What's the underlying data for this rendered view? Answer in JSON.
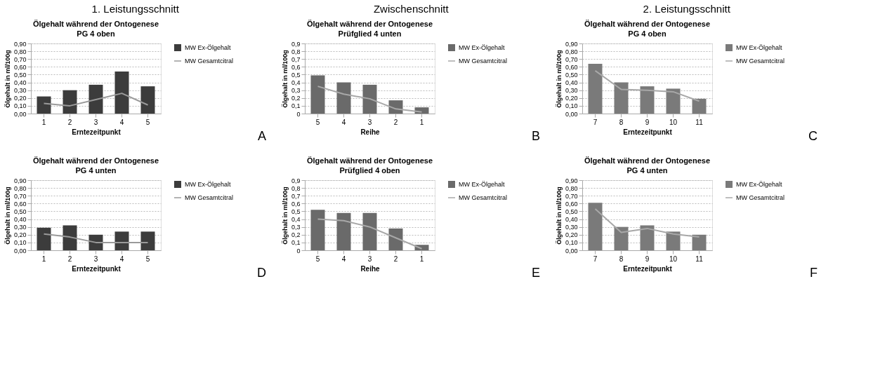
{
  "chart_data": [
    {
      "type": "bar",
      "title": "Ölgehalt während der Ontogenese",
      "subtitle": "PG 4 oben",
      "xlabel": "Erntezeitpunkt",
      "ylabel": "Ölgehalt in ml/100g",
      "categories": [
        "1",
        "2",
        "3",
        "4",
        "5"
      ],
      "series": [
        {
          "name": "MW Ex-Ölgehalt",
          "color": "#3c3c3c",
          "values": [
            0.22,
            0.3,
            0.37,
            0.54,
            0.35
          ]
        },
        {
          "name": "MW Gesamtcitral",
          "type": "line",
          "color": "#9a9a9a",
          "values": [
            0.13,
            0.1,
            0.18,
            0.26,
            0.11
          ]
        }
      ],
      "ylim": [
        0,
        0.9
      ],
      "yticks": [
        {
          "value": 0,
          "label": "0,00"
        },
        {
          "value": 0.1,
          "label": "0,10"
        },
        {
          "value": 0.2,
          "label": "0,20"
        },
        {
          "value": 0.3,
          "label": "0,30"
        },
        {
          "value": 0.4,
          "label": "0,40"
        },
        {
          "value": 0.5,
          "label": "0,50"
        },
        {
          "value": 0.6,
          "label": "0,60"
        },
        {
          "value": 0.7,
          "label": "0,70"
        },
        {
          "value": 0.8,
          "label": "0,80"
        },
        {
          "value": 0.9,
          "label": "0,90"
        }
      ],
      "grid": "y",
      "legend": "right",
      "annotations": [
        "1. Leistungsschnitt",
        "A"
      ]
    },
    {
      "type": "bar",
      "title": "Ölgehalt während der Ontogenese",
      "subtitle": "Prüfglied 4 unten",
      "xlabel": "Reihe",
      "ylabel": "Ölgehalt in ml/100g",
      "categories": [
        "5",
        "4",
        "3",
        "2",
        "1"
      ],
      "series": [
        {
          "name": "MW Ex-Ölgehalt",
          "color": "#6a6a6a",
          "values": [
            0.49,
            0.4,
            0.37,
            0.17,
            0.08
          ]
        },
        {
          "name": "MW Gesamtcitral",
          "type": "line",
          "color": "#a8a8a8",
          "values": [
            0.35,
            0.25,
            0.19,
            0.06,
            0.02
          ]
        }
      ],
      "ylim": [
        0,
        0.9
      ],
      "yticks": [
        0,
        {
          "value": 0.1,
          "label": "0,1"
        },
        {
          "value": 0.2,
          "label": "0,2"
        },
        {
          "value": 0.3,
          "label": "0,3"
        },
        {
          "value": 0.4,
          "label": "0,4"
        },
        {
          "value": 0.5,
          "label": "0,5"
        },
        {
          "value": 0.6,
          "label": "0,6"
        },
        {
          "value": 0.7,
          "label": "0,7"
        },
        {
          "value": 0.8,
          "label": "0,8"
        },
        {
          "value": 0.9,
          "label": "0,9"
        }
      ],
      "grid": "y",
      "legend": "right",
      "annotations": [
        "Zwischenschnitt",
        "B"
      ]
    },
    {
      "type": "bar",
      "title": "Ölgehalt während der Ontogenese",
      "subtitle": "PG 4 oben",
      "xlabel": "Erntezeitpunkt",
      "ylabel": "Ölgehalt in ml/100g",
      "categories": [
        "7",
        "8",
        "9",
        "10",
        "11"
      ],
      "series": [
        {
          "name": "MW Ex-Ölgehalt",
          "color": "#7a7a7a",
          "values": [
            0.64,
            0.4,
            0.35,
            0.32,
            0.19
          ]
        },
        {
          "name": "MW Gesamtcitral",
          "type": "line",
          "color": "#a8a8a8",
          "values": [
            0.55,
            0.31,
            0.3,
            0.28,
            0.16
          ]
        }
      ],
      "ylim": [
        0,
        0.9
      ],
      "yticks": [
        {
          "value": 0,
          "label": "0,00"
        },
        {
          "value": 0.1,
          "label": "0,10"
        },
        {
          "value": 0.2,
          "label": "0,20"
        },
        {
          "value": 0.3,
          "label": "0,30"
        },
        {
          "value": 0.4,
          "label": "0,40"
        },
        {
          "value": 0.5,
          "label": "0,50"
        },
        {
          "value": 0.6,
          "label": "0,60"
        },
        {
          "value": 0.7,
          "label": "0,70"
        },
        {
          "value": 0.8,
          "label": "0,80"
        },
        {
          "value": 0.9,
          "label": "0,90"
        }
      ],
      "grid": "y",
      "legend": "right",
      "annotations": [
        "2. Leistungsschnitt",
        "C"
      ]
    },
    {
      "type": "bar",
      "title": "Ölgehalt während der Ontogenese",
      "subtitle": "PG 4 unten",
      "xlabel": "Erntezeitpunkt",
      "ylabel": "Ölgehalt in ml/100g",
      "categories": [
        "1",
        "2",
        "3",
        "4",
        "5"
      ],
      "series": [
        {
          "name": "MW Ex-Ölgehalt",
          "color": "#3c3c3c",
          "values": [
            0.29,
            0.32,
            0.2,
            0.24,
            0.24
          ]
        },
        {
          "name": "MW Gesamtcitral",
          "type": "line",
          "color": "#9a9a9a",
          "values": [
            0.21,
            0.17,
            0.1,
            0.1,
            0.1
          ]
        }
      ],
      "ylim": [
        0,
        0.9
      ],
      "yticks": [
        {
          "value": 0,
          "label": "0,00"
        },
        {
          "value": 0.1,
          "label": "0,10"
        },
        {
          "value": 0.2,
          "label": "0,20"
        },
        {
          "value": 0.3,
          "label": "0,30"
        },
        {
          "value": 0.4,
          "label": "0,40"
        },
        {
          "value": 0.5,
          "label": "0,50"
        },
        {
          "value": 0.6,
          "label": "0,60"
        },
        {
          "value": 0.7,
          "label": "0,70"
        },
        {
          "value": 0.8,
          "label": "0,80"
        },
        {
          "value": 0.9,
          "label": "0,90"
        }
      ],
      "grid": "y",
      "legend": "right",
      "annotations": [
        "D"
      ]
    },
    {
      "type": "bar",
      "title": "Ölgehalt während der Ontogenese",
      "subtitle": "Prüfglied 4 oben",
      "xlabel": "Reihe",
      "ylabel": "Ölgehalt in ml/100g",
      "categories": [
        "5",
        "4",
        "3",
        "2",
        "1"
      ],
      "series": [
        {
          "name": "MW Ex-Ölgehalt",
          "color": "#6a6a6a",
          "values": [
            0.52,
            0.48,
            0.48,
            0.28,
            0.07
          ]
        },
        {
          "name": "MW Gesamtcitral",
          "type": "line",
          "color": "#a8a8a8",
          "values": [
            0.4,
            0.38,
            0.3,
            0.16,
            0.02
          ]
        }
      ],
      "ylim": [
        0,
        0.9
      ],
      "yticks": [
        0,
        {
          "value": 0.1,
          "label": "0,1"
        },
        {
          "value": 0.2,
          "label": "0,2"
        },
        {
          "value": 0.3,
          "label": "0,3"
        },
        {
          "value": 0.4,
          "label": "0,4"
        },
        {
          "value": 0.5,
          "label": "0,5"
        },
        {
          "value": 0.6,
          "label": "0,6"
        },
        {
          "value": 0.7,
          "label": "0,7"
        },
        {
          "value": 0.8,
          "label": "0,8"
        },
        {
          "value": 0.9,
          "label": "0,9"
        }
      ],
      "grid": "y",
      "legend": "right",
      "annotations": [
        "E"
      ]
    },
    {
      "type": "bar",
      "title": "Ölgehalt während der Ontogenese",
      "subtitle": "PG 4 unten",
      "xlabel": "Erntezeitpunkt",
      "ylabel": "Ölgehalt in ml/100g",
      "categories": [
        "7",
        "8",
        "9",
        "10",
        "11"
      ],
      "series": [
        {
          "name": "MW Ex-Ölgehalt",
          "color": "#7a7a7a",
          "values": [
            0.61,
            0.3,
            0.32,
            0.24,
            0.2
          ]
        },
        {
          "name": "MW Gesamtcitral",
          "type": "line",
          "color": "#a8a8a8",
          "values": [
            0.53,
            0.23,
            0.28,
            0.21,
            0.17
          ]
        }
      ],
      "ylim": [
        0,
        0.9
      ],
      "yticks": [
        {
          "value": 0,
          "label": "0,00"
        },
        {
          "value": 0.1,
          "label": "0,10"
        },
        {
          "value": 0.2,
          "label": "0,20"
        },
        {
          "value": 0.3,
          "label": "0,30"
        },
        {
          "value": 0.4,
          "label": "0,40"
        },
        {
          "value": 0.5,
          "label": "0,50"
        },
        {
          "value": 0.6,
          "label": "0,60"
        },
        {
          "value": 0.7,
          "label": "0,70"
        },
        {
          "value": 0.8,
          "label": "0,80"
        },
        {
          "value": 0.9,
          "label": "0,90"
        }
      ],
      "grid": "y",
      "legend": "right",
      "annotations": [
        "F"
      ]
    }
  ]
}
